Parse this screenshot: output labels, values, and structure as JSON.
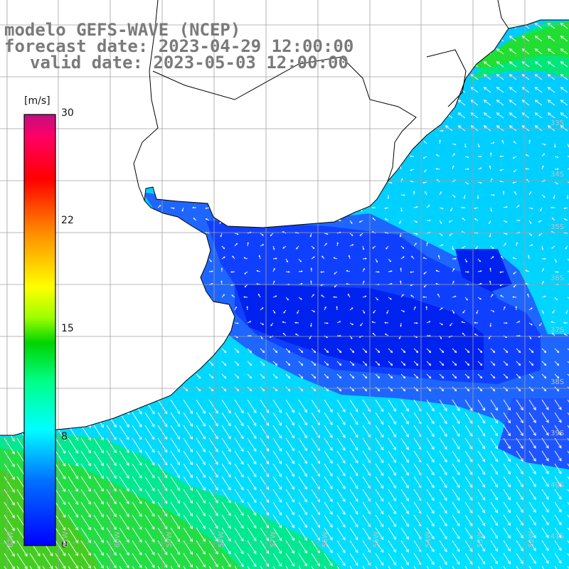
{
  "title": {
    "line1": "modelo GEFS-WAVE (NCEP)",
    "line2": "forecast date: 2023-04-29 12:00:00",
    "line3": "valid date: 2023-05-03 12:00:00"
  },
  "colorbar": {
    "units": "[m/s]",
    "min": 0,
    "max": 30,
    "tick_labels": [
      "30",
      "22",
      "15",
      "8",
      "0"
    ],
    "tick_values": [
      30,
      22,
      15,
      8,
      0
    ],
    "colors": [
      "#0000ff",
      "#00a0ff",
      "#00ffff",
      "#00ff66",
      "#00cc00",
      "#ffff00",
      "#ff8800",
      "#ff0000",
      "#ff0066",
      "#c01080"
    ]
  },
  "map": {
    "lat_labels": [
      "33S",
      "34S",
      "35S",
      "36S",
      "37S",
      "38S",
      "39S",
      "40S",
      "41S"
    ],
    "lon_labels": [
      "62W",
      "61W",
      "60W",
      "59W",
      "58W",
      "57W",
      "56W",
      "55W",
      "54W",
      "53W",
      "52W"
    ],
    "land_color": "#ffffff",
    "coast_color": "#000000",
    "grid_color": "#a0a0a0",
    "arrow_color": "#ffffff"
  }
}
